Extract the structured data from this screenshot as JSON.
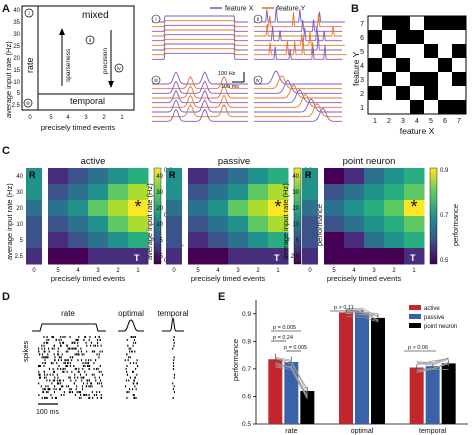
{
  "panels": {
    "A": {
      "letter": "A",
      "ylabel": "average input rate (Hz)",
      "xlabel": "precisely timed events",
      "yticks": [
        "40",
        "35",
        "30",
        "25",
        "20",
        "15",
        "10",
        "5",
        "2.5"
      ],
      "xticks": [
        "0",
        "5",
        "4",
        "3",
        "2",
        "1"
      ],
      "regions": {
        "rate": "rate",
        "mixed": "mixed",
        "temporal": "temporal"
      },
      "arrows": {
        "sparseness": "sparseness",
        "precision": "precision"
      },
      "markers": {
        "i": "i",
        "ii": "ii",
        "iii": "iii",
        "iv": "iv"
      },
      "legend": {
        "feature_x": "feature X",
        "feature_y": "feature Y"
      },
      "scalebar": {
        "rate": "100 Hz",
        "time": "100 ms"
      },
      "colors": {
        "feature_x": "#7a5cc2",
        "feature_y": "#e8742a"
      }
    },
    "B": {
      "letter": "B",
      "xlabel": "feature X",
      "ylabel": "feature Y",
      "xticks": [
        "1",
        "2",
        "3",
        "4",
        "5",
        "6",
        "7"
      ],
      "yticks": [
        "7",
        "6",
        "5",
        "4",
        "3",
        "2",
        "1"
      ],
      "grid_rows_top_to_bottom": [
        [
          0,
          1,
          1,
          0,
          1,
          1,
          1
        ],
        [
          1,
          0,
          1,
          1,
          0,
          0,
          0
        ],
        [
          0,
          1,
          0,
          0,
          1,
          0,
          1
        ],
        [
          1,
          0,
          1,
          0,
          0,
          1,
          0
        ],
        [
          0,
          1,
          0,
          1,
          1,
          0,
          1
        ],
        [
          1,
          0,
          1,
          0,
          1,
          0,
          0
        ],
        [
          0,
          0,
          0,
          1,
          0,
          1,
          1
        ]
      ]
    },
    "C": {
      "letter": "C",
      "titles": [
        "active",
        "passive",
        "point neuron"
      ],
      "ylabel": "average input rate (Hz)",
      "xlabel": "precisely timed events",
      "colorbar_label": "performance",
      "colorbar_ticks": [
        "0.9",
        "0.7",
        "0.5"
      ],
      "yticks": [
        "40",
        "30",
        "20",
        "10",
        "5",
        "2.5"
      ],
      "xticks": [
        "0",
        "5",
        "4",
        "3",
        "2",
        "1"
      ],
      "corner_R": "R",
      "corner_T": "T",
      "star": "*"
    },
    "D": {
      "letter": "D",
      "labels": {
        "rate": "rate",
        "optimal": "optimal",
        "temporal": "temporal",
        "spikes": "spikes",
        "scale": "100 ms"
      }
    },
    "E": {
      "letter": "E",
      "ylabel": "performance",
      "yticks": [
        "0.9",
        "0.8",
        "0.7",
        "0.6",
        "0.5"
      ],
      "legend": [
        "active",
        "passive",
        "point neuron"
      ],
      "colors": {
        "active": "#c1272d",
        "passive": "#3a62a8",
        "point_neuron": "#000000"
      },
      "sig": {
        "p005a": "p = 0.005",
        "p024": "p = 0.24",
        "p005b": "p = 0.005",
        "p011": "p > 0.11",
        "p006": "p > 0.06"
      }
    }
  },
  "chart_data": {
    "type": "bar",
    "categories": [
      "rate",
      "optimal",
      "temporal"
    ],
    "series": [
      {
        "name": "active",
        "values": [
          0.735,
          0.905,
          0.705
        ]
      },
      {
        "name": "passive",
        "values": [
          0.725,
          0.905,
          0.71
        ]
      },
      {
        "name": "point neuron",
        "values": [
          0.62,
          0.885,
          0.72
        ]
      }
    ],
    "errors": [
      [
        0.02,
        0.01,
        0.01
      ],
      [
        0.02,
        0.01,
        0.01
      ],
      [
        0.015,
        0.015,
        0.012
      ]
    ],
    "ylabel": "performance",
    "ylim": [
      0.5,
      0.95
    ]
  }
}
